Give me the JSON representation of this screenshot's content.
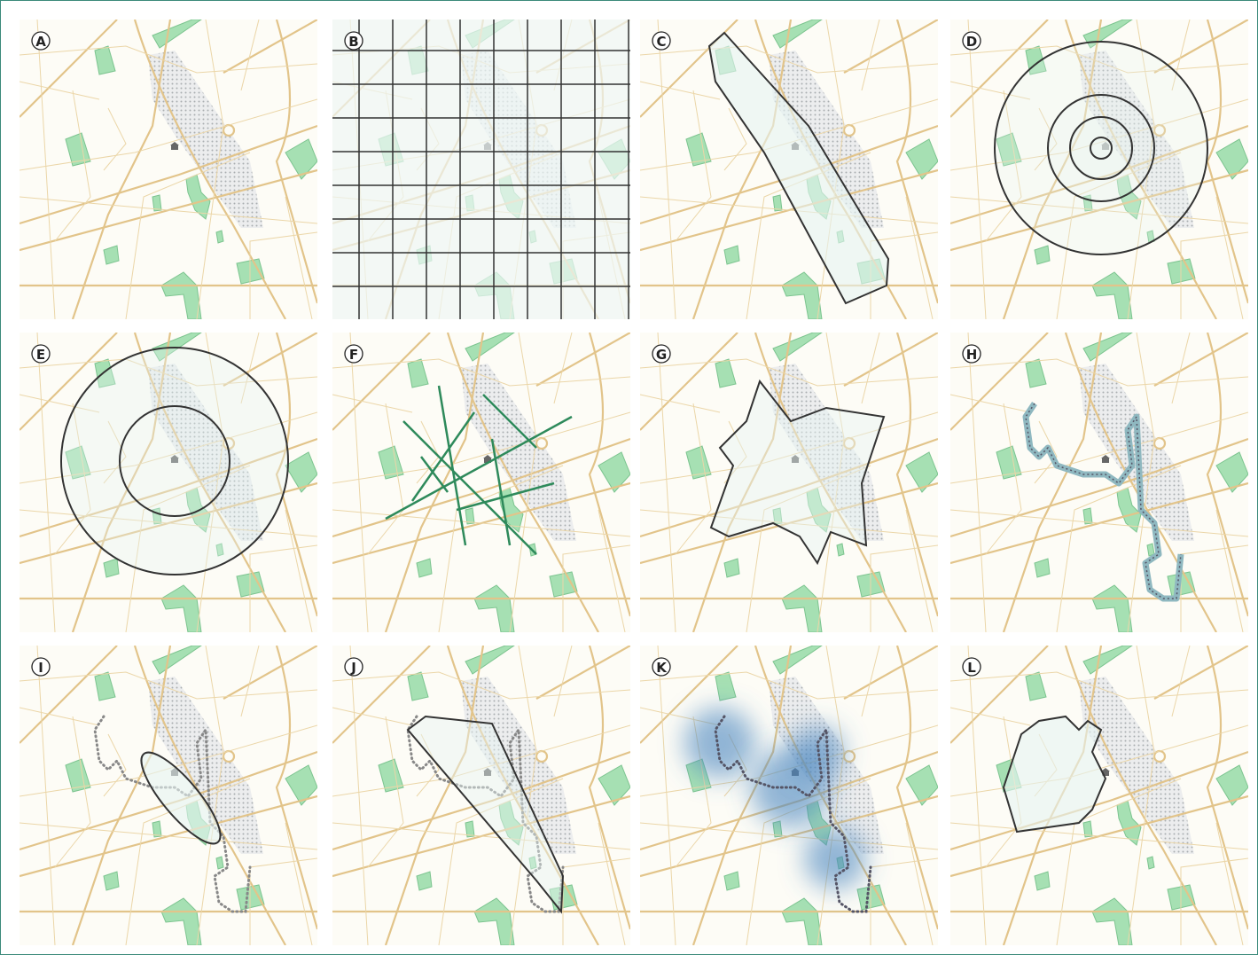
{
  "panels": [
    {
      "label": "A"
    },
    {
      "label": "B"
    },
    {
      "label": "C"
    },
    {
      "label": "D"
    },
    {
      "label": "E"
    },
    {
      "label": "F"
    },
    {
      "label": "G"
    },
    {
      "label": "H"
    },
    {
      "label": "I"
    },
    {
      "label": "J"
    },
    {
      "label": "K"
    },
    {
      "label": "L"
    }
  ]
}
